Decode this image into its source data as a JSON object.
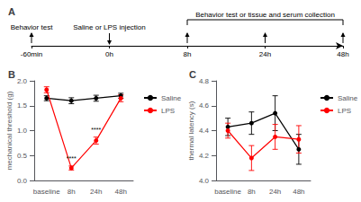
{
  "chart_data": [
    {
      "type": "timeline",
      "title": "A",
      "categories": [
        "-60min",
        "0h",
        "8h",
        "24h",
        "48h"
      ],
      "annotations": [
        {
          "x": "-60min",
          "text": "Behavior test",
          "marker": "up"
        },
        {
          "x": "0h",
          "text": "Saline or LPS injection",
          "marker": "down"
        },
        {
          "from": "8h",
          "to": "48h",
          "text": "Behavior test or tissue and serum collection",
          "marker": "up"
        }
      ]
    },
    {
      "type": "line",
      "title": "B",
      "ylabel": "mechanical threshold (g)",
      "categories": [
        "baseline",
        "8h",
        "24h",
        "48h"
      ],
      "ylim": [
        0.0,
        2.0
      ],
      "yticks": [
        {
          "value": 0.0,
          "label": "0.0"
        },
        0.5,
        {
          "value": 1.0,
          "label": "1.0"
        },
        1.5,
        {
          "value": 2.0,
          "label": "2.0"
        }
      ],
      "grid": false,
      "legend": "right",
      "marker": "circle",
      "series": [
        {
          "name": "Saline",
          "color": "#000000",
          "values": [
            1.65,
            1.6,
            1.65,
            1.7
          ],
          "errors": [
            0.05,
            0.06,
            0.06,
            0.05
          ]
        },
        {
          "name": "LPS",
          "color": "#ff0000",
          "values": [
            1.82,
            0.25,
            0.8,
            1.65
          ],
          "errors": [
            0.06,
            0.04,
            0.07,
            0.07
          ]
        }
      ],
      "annotations": [
        {
          "x": "8h",
          "y": 0.36,
          "text": "****"
        },
        {
          "x": "24h",
          "y": 0.93,
          "text": "****"
        }
      ]
    },
    {
      "type": "line",
      "title": "C",
      "ylabel": "thermal latency (s)",
      "categories": [
        "baseline",
        "8h",
        "24h",
        "48h"
      ],
      "ylim": [
        4.0,
        4.8
      ],
      "yticks": [
        {
          "value": 4.0,
          "label": "4.0"
        },
        4.2,
        4.4,
        4.6,
        4.8
      ],
      "grid": false,
      "legend": "right",
      "marker": "circle",
      "series": [
        {
          "name": "Saline",
          "color": "#000000",
          "values": [
            4.43,
            4.46,
            4.54,
            4.25
          ],
          "errors": [
            0.07,
            0.09,
            0.14,
            0.12
          ]
        },
        {
          "name": "LPS",
          "color": "#ff0000",
          "values": [
            4.4,
            4.18,
            4.35,
            4.33
          ],
          "errors": [
            0.06,
            0.1,
            0.1,
            0.11
          ]
        }
      ]
    }
  ]
}
